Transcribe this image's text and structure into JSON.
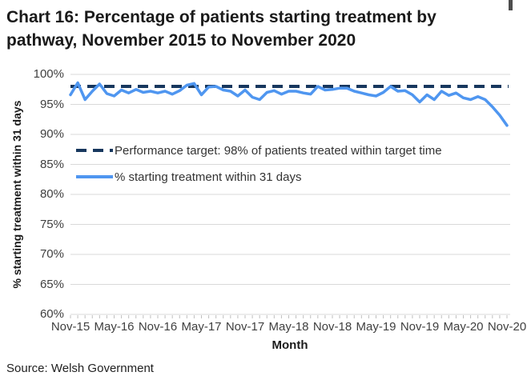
{
  "page": {
    "title": "Chart 16: Percentage of patients starting treatment by pathway, November 2015 to November 2020",
    "source": "Source: Welsh Government"
  },
  "colors": {
    "target_line": "#17375e",
    "series_line": "#4f96f0",
    "gridline": "#d9d9d9",
    "tick_mark": "#bfbfbf",
    "axis_text": "#404040",
    "title_text": "#1a1a1a"
  },
  "chart_data": {
    "type": "line",
    "title": "Chart 16: Percentage of patients starting treatment by pathway, November 2015 to November 2020",
    "xlabel": "Month",
    "ylabel": "% starting treatment within 31 days",
    "ylim": [
      60,
      100
    ],
    "ytick_step": 5,
    "ytick_labels": [
      "100%",
      "95%",
      "90%",
      "85%",
      "80%",
      "75%",
      "70%",
      "65%",
      "60%"
    ],
    "xtick_labels": [
      "Nov-15",
      "May-16",
      "Nov-16",
      "May-17",
      "Nov-17",
      "May-18",
      "Nov-18",
      "May-19",
      "Nov-19",
      "May-20",
      "Nov-20"
    ],
    "xtick_every_n_months": 6,
    "grid": "horizontal",
    "legend_position": "inside-top-left",
    "months": [
      "Nov-15",
      "Dec-15",
      "Jan-16",
      "Feb-16",
      "Mar-16",
      "Apr-16",
      "May-16",
      "Jun-16",
      "Jul-16",
      "Aug-16",
      "Sep-16",
      "Oct-16",
      "Nov-16",
      "Dec-16",
      "Jan-17",
      "Feb-17",
      "Mar-17",
      "Apr-17",
      "May-17",
      "Jun-17",
      "Jul-17",
      "Aug-17",
      "Sep-17",
      "Oct-17",
      "Nov-17",
      "Dec-17",
      "Jan-18",
      "Feb-18",
      "Mar-18",
      "Apr-18",
      "May-18",
      "Jun-18",
      "Jul-18",
      "Aug-18",
      "Sep-18",
      "Oct-18",
      "Nov-18",
      "Dec-18",
      "Jan-19",
      "Feb-19",
      "Mar-19",
      "Apr-19",
      "May-19",
      "Jun-19",
      "Jul-19",
      "Aug-19",
      "Sep-19",
      "Oct-19",
      "Nov-19",
      "Dec-19",
      "Jan-20",
      "Feb-20",
      "Mar-20",
      "Apr-20",
      "May-20",
      "Jun-20",
      "Jul-20",
      "Aug-20",
      "Sep-20",
      "Oct-20",
      "Nov-20"
    ],
    "series": [
      {
        "name": "Performance target: 98% of patients treated within target time",
        "type": "constant-dashed",
        "value": 98
      },
      {
        "name": "% starting treatment within 31 days",
        "type": "line",
        "values": [
          96.6,
          98.6,
          95.8,
          97.2,
          98.4,
          96.8,
          96.4,
          97.4,
          96.9,
          97.5,
          97.0,
          97.2,
          96.9,
          97.2,
          96.7,
          97.3,
          98.2,
          98.5,
          96.6,
          97.9,
          98.0,
          97.4,
          97.2,
          96.4,
          97.4,
          96.2,
          95.8,
          97.0,
          97.3,
          96.7,
          97.2,
          97.2,
          96.9,
          96.7,
          98.0,
          97.4,
          97.5,
          97.7,
          97.7,
          97.2,
          96.9,
          96.6,
          96.4,
          97.0,
          98.0,
          97.2,
          97.3,
          96.6,
          95.4,
          96.6,
          95.8,
          97.2,
          96.5,
          96.9,
          96.1,
          95.8,
          96.3,
          95.8,
          94.6,
          93.2,
          91.5
        ]
      }
    ]
  }
}
